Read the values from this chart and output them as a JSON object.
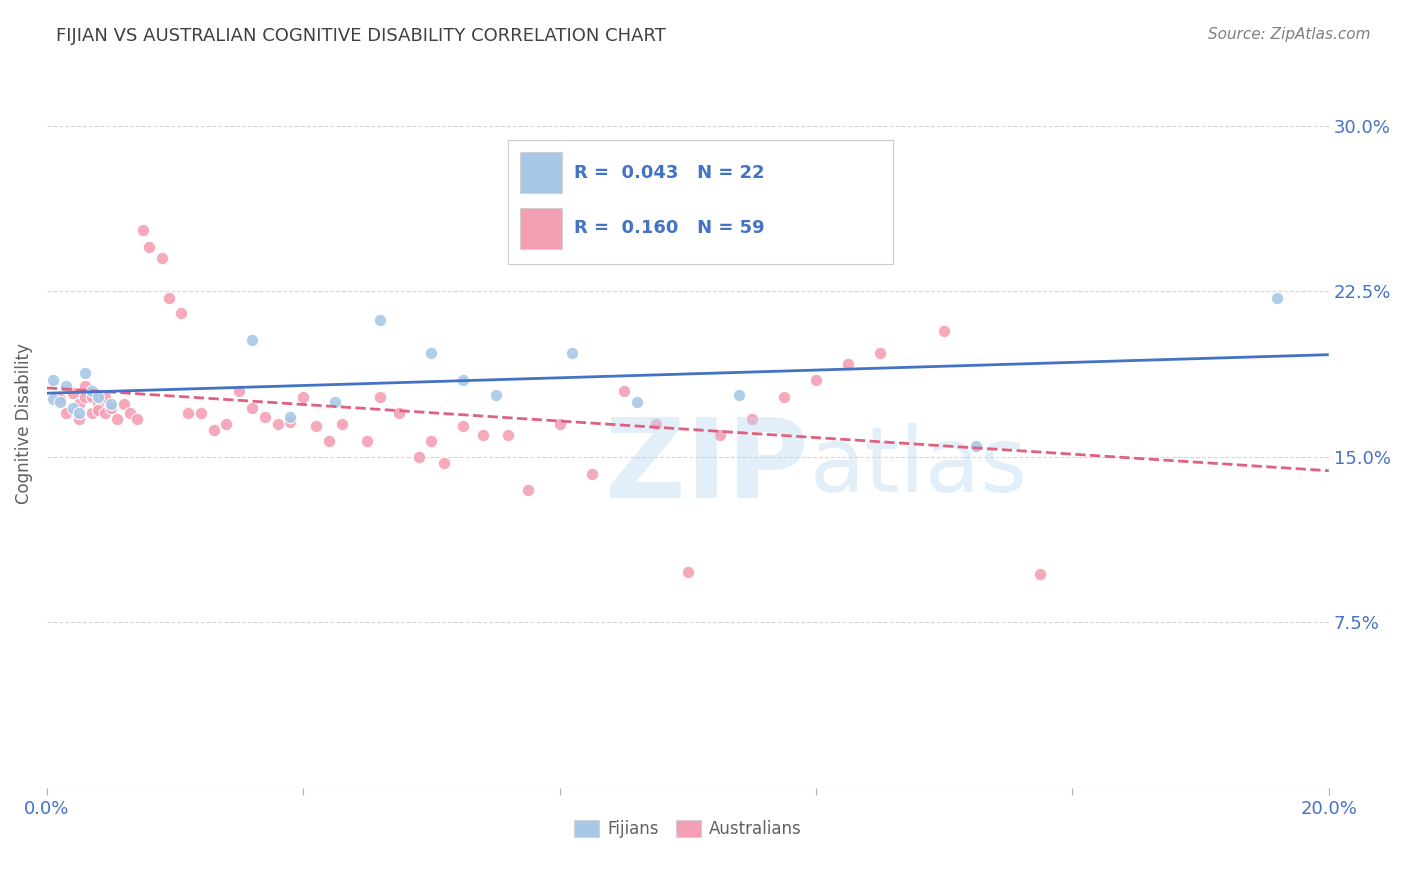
{
  "title": "FIJIAN VS AUSTRALIAN COGNITIVE DISABILITY CORRELATION CHART",
  "source": "Source: ZipAtlas.com",
  "ylabel": "Cognitive Disability",
  "xlim": [
    0.0,
    0.2
  ],
  "ylim": [
    0.0,
    0.33
  ],
  "yticks_right": [
    0.075,
    0.15,
    0.225,
    0.3
  ],
  "ytick_labels_right": [
    "7.5%",
    "15.0%",
    "22.5%",
    "30.0%"
  ],
  "fijian_color": "#a8c8e8",
  "australian_color": "#f4a0b4",
  "fijian_trend_color": "#4472c4",
  "australian_trend_color": "#e06080",
  "grid_color": "#d8d8d8",
  "background_color": "#ffffff",
  "title_color": "#404040",
  "axis_color": "#4472c4",
  "marker_size": 80,
  "fijian_x": [
    0.001,
    0.001,
    0.002,
    0.003,
    0.004,
    0.005,
    0.006,
    0.007,
    0.008,
    0.01,
    0.032,
    0.038,
    0.045,
    0.052,
    0.06,
    0.065,
    0.07,
    0.082,
    0.092,
    0.108,
    0.145,
    0.192
  ],
  "fijian_y": [
    0.185,
    0.176,
    0.175,
    0.182,
    0.172,
    0.17,
    0.188,
    0.18,
    0.177,
    0.174,
    0.203,
    0.168,
    0.175,
    0.212,
    0.197,
    0.185,
    0.178,
    0.197,
    0.175,
    0.178,
    0.155,
    0.222
  ],
  "australian_x": [
    0.002,
    0.003,
    0.004,
    0.005,
    0.005,
    0.006,
    0.006,
    0.007,
    0.007,
    0.008,
    0.008,
    0.009,
    0.009,
    0.01,
    0.011,
    0.012,
    0.013,
    0.014,
    0.015,
    0.016,
    0.018,
    0.019,
    0.021,
    0.022,
    0.024,
    0.026,
    0.028,
    0.03,
    0.032,
    0.034,
    0.036,
    0.038,
    0.04,
    0.042,
    0.044,
    0.046,
    0.05,
    0.052,
    0.055,
    0.058,
    0.06,
    0.062,
    0.065,
    0.068,
    0.072,
    0.075,
    0.08,
    0.085,
    0.09,
    0.095,
    0.1,
    0.105,
    0.11,
    0.115,
    0.12,
    0.125,
    0.13,
    0.14,
    0.155
  ],
  "australian_y": [
    0.176,
    0.17,
    0.179,
    0.167,
    0.174,
    0.177,
    0.182,
    0.17,
    0.177,
    0.174,
    0.171,
    0.17,
    0.177,
    0.172,
    0.167,
    0.174,
    0.17,
    0.167,
    0.253,
    0.245,
    0.24,
    0.222,
    0.215,
    0.17,
    0.17,
    0.162,
    0.165,
    0.18,
    0.172,
    0.168,
    0.165,
    0.166,
    0.177,
    0.164,
    0.157,
    0.165,
    0.157,
    0.177,
    0.17,
    0.15,
    0.157,
    0.147,
    0.164,
    0.16,
    0.16,
    0.135,
    0.165,
    0.142,
    0.18,
    0.165,
    0.098,
    0.16,
    0.167,
    0.177,
    0.185,
    0.192,
    0.197,
    0.207,
    0.097
  ],
  "watermark_zip_color": "#b8d8f0",
  "watermark_atlas_color": "#b8d8f0"
}
